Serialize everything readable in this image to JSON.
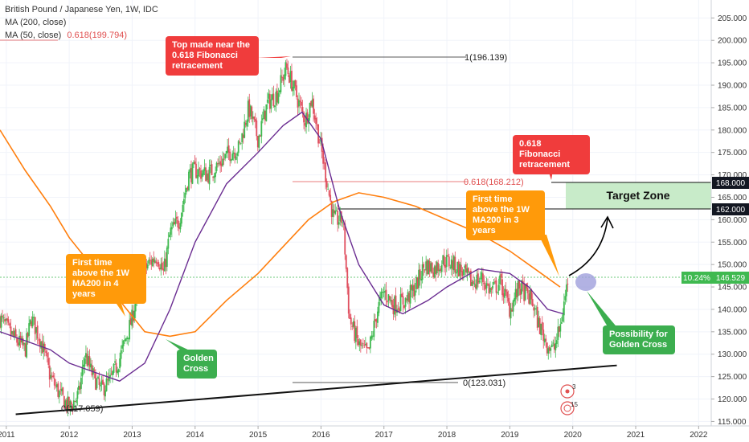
{
  "header": {
    "title": "British Pound / Japanese Yen, 1W, IDC",
    "ma200_label": "MA (200, close)",
    "ma50_label": "MA (50, close)",
    "fib_label": "0.618(199.794)"
  },
  "annotations": {
    "top_callout": "Top made near the 0.618 Fibonacci retracement",
    "fib_callout": "0.618 Fibonacci retracement",
    "first_time_right": "First time above the 1W MA200 in 3 years",
    "first_time_left": "First time above the 1W MA200 in 4 years",
    "golden_cross": "Golden Cross",
    "possibility": "Possibility for Golden Cross",
    "target_zone": "Target Zone",
    "fib_1": "1(196.139)",
    "fib_0618": "0.618(168.212)",
    "fib_0_right": "0(123.031)",
    "fib_0_left": "0(117.059)",
    "price_tag_168": "168.000",
    "price_tag_162": "162.000",
    "price_change": "10.24%",
    "price_current": "146.529",
    "event_3": "3",
    "event_15": "15"
  },
  "colors": {
    "up": "#26a69a",
    "up_alt": "#3fb950",
    "down": "#e04f5f",
    "ma200": "#ff7f0e",
    "ma50": "#6a2c91",
    "trendline": "#111111",
    "target_zone": "#c8ebc9"
  },
  "chart_data": {
    "type": "candlestick",
    "title": "British Pound / Japanese Yen, 1W, IDC",
    "x_axis_ticks": [
      "2011",
      "2012",
      "2013",
      "2014",
      "2015",
      "2016",
      "2017",
      "2018",
      "2019",
      "2020",
      "2021",
      "2022"
    ],
    "y_axis_ticks": [
      115,
      120,
      125,
      130,
      135,
      140,
      145,
      150,
      155,
      160,
      165,
      170,
      175,
      180,
      185,
      190,
      195,
      200,
      205
    ],
    "ylim": [
      114,
      209
    ],
    "xlim": [
      2010.9,
      2022.2
    ],
    "price_path": [
      [
        2010.9,
        138
      ],
      [
        2011.1,
        134
      ],
      [
        2011.3,
        131
      ],
      [
        2011.4,
        138
      ],
      [
        2011.55,
        133
      ],
      [
        2011.7,
        125
      ],
      [
        2011.85,
        121
      ],
      [
        2012.0,
        118
      ],
      [
        2012.15,
        121
      ],
      [
        2012.25,
        130
      ],
      [
        2012.35,
        126
      ],
      [
        2012.5,
        122
      ],
      [
        2012.65,
        124
      ],
      [
        2012.8,
        129
      ],
      [
        2013.0,
        138
      ],
      [
        2013.1,
        146
      ],
      [
        2013.25,
        150
      ],
      [
        2013.4,
        152
      ],
      [
        2013.5,
        148
      ],
      [
        2013.6,
        157
      ],
      [
        2013.75,
        160
      ],
      [
        2013.9,
        170
      ],
      [
        2014.0,
        171
      ],
      [
        2014.2,
        170
      ],
      [
        2014.35,
        172
      ],
      [
        2014.55,
        175
      ],
      [
        2014.7,
        176
      ],
      [
        2014.85,
        185
      ],
      [
        2015.0,
        178
      ],
      [
        2015.15,
        186
      ],
      [
        2015.3,
        188
      ],
      [
        2015.45,
        194
      ],
      [
        2015.55,
        190
      ],
      [
        2015.65,
        186
      ],
      [
        2015.75,
        182
      ],
      [
        2015.85,
        187
      ],
      [
        2016.0,
        176
      ],
      [
        2016.1,
        168
      ],
      [
        2016.2,
        160
      ],
      [
        2016.35,
        160
      ],
      [
        2016.45,
        138
      ],
      [
        2016.6,
        132
      ],
      [
        2016.75,
        130
      ],
      [
        2016.9,
        140
      ],
      [
        2017.0,
        144
      ],
      [
        2017.15,
        141
      ],
      [
        2017.35,
        142
      ],
      [
        2017.5,
        145
      ],
      [
        2017.65,
        150
      ],
      [
        2017.8,
        149
      ],
      [
        2017.95,
        151
      ],
      [
        2018.1,
        150
      ],
      [
        2018.2,
        149
      ],
      [
        2018.4,
        146
      ],
      [
        2018.55,
        147
      ],
      [
        2018.7,
        144
      ],
      [
        2018.85,
        146
      ],
      [
        2019.0,
        140
      ],
      [
        2019.15,
        145
      ],
      [
        2019.35,
        142
      ],
      [
        2019.45,
        137
      ],
      [
        2019.6,
        132
      ],
      [
        2019.7,
        131
      ],
      [
        2019.8,
        136
      ],
      [
        2019.92,
        146.5
      ]
    ],
    "series": [
      {
        "name": "MA (200, close)",
        "x": [
          2010.9,
          2011.3,
          2011.7,
          2012.0,
          2012.4,
          2012.8,
          2013.2,
          2013.6,
          2014.0,
          2014.5,
          2015.0,
          2015.4,
          2015.8,
          2016.2,
          2016.6,
          2017.0,
          2017.5,
          2018.0,
          2018.5,
          2019.0,
          2019.4,
          2019.8
        ],
        "values": [
          180,
          171,
          163,
          156,
          149,
          142,
          135,
          134,
          135,
          142,
          148,
          154,
          160,
          164,
          166,
          165,
          163,
          160,
          157,
          153,
          149,
          145
        ]
      },
      {
        "name": "MA (50, close)",
        "x": [
          2010.9,
          2011.3,
          2011.7,
          2012.0,
          2012.4,
          2012.8,
          2013.2,
          2013.6,
          2014.0,
          2014.5,
          2015.0,
          2015.4,
          2015.7,
          2016.0,
          2016.3,
          2016.6,
          2017.0,
          2017.3,
          2017.7,
          2018.0,
          2018.5,
          2019.0,
          2019.3,
          2019.6,
          2019.85
        ],
        "values": [
          135,
          133,
          131,
          128,
          126,
          124,
          128,
          140,
          155,
          168,
          175,
          181,
          184,
          178,
          162,
          150,
          141,
          139,
          142,
          145,
          149,
          148,
          145,
          140,
          139
        ]
      }
    ],
    "fibonacci_levels": [
      {
        "label": "1(196.139)",
        "value": 196.139
      },
      {
        "label": "0.618(168.212)",
        "value": 168.212
      },
      {
        "label": "0(123.031)",
        "value": 123.031
      },
      {
        "label": "0(117.059)",
        "value": 117.059
      }
    ],
    "horizontal_levels": [
      168.0,
      162.0
    ],
    "target_zone": {
      "from": 162.0,
      "to": 168.0,
      "x_start": 2019.92,
      "x_end": 2022.2
    },
    "trendline": [
      [
        2011.15,
        116.6
      ],
      [
        2020.7,
        127.5
      ]
    ]
  }
}
